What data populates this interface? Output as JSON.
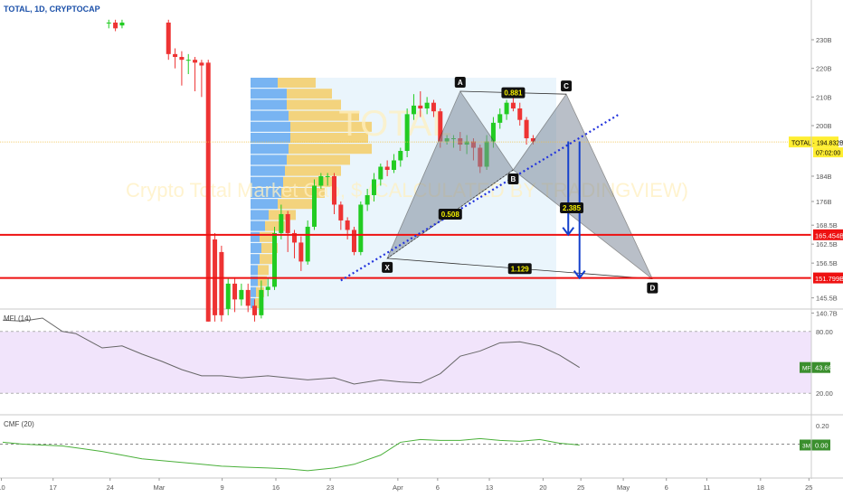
{
  "header": {
    "symbol_line": "TOTAL, 1D, CRYPTOCAP",
    "watermark_symbol": "TOTAL",
    "watermark_desc": "Crypto Total Market Cap, $ (CALCULATED BY TRADINGVIEW)"
  },
  "colors": {
    "up": "#22cc22",
    "down": "#ee3333",
    "vp_up": "#64a8f0",
    "vp_down": "#f5cc66",
    "vp_bg": "#dceefa",
    "pattern_fill": "#808c9c",
    "hline": "#ee1111",
    "trend": "#2233dd",
    "arrow": "#1540cc",
    "mfi_band": "#f1e4fb",
    "mfi_line": "#666666",
    "cmf_line": "#4ab03a",
    "last_price_bg": "#ffee33",
    "indicator_badge": "#3b8f2e"
  },
  "chart_data": [
    {
      "type": "candlestick",
      "title": "TOTAL, 1D, CRYPTOCAP",
      "y_unit": "B",
      "y_range": [
        138,
        236
      ],
      "y_ticks": [
        "230B",
        "220B",
        "210B",
        "200B",
        "184B",
        "176B",
        "168.5B",
        "162.5B",
        "156.5B",
        "145.5B",
        "140.7B"
      ],
      "x_ticks": [
        "10",
        "17",
        "24",
        "Mar",
        "9",
        "16",
        "23",
        "Apr",
        "6",
        "13",
        "20",
        "25",
        "May",
        "6",
        "11",
        "18",
        "25"
      ],
      "last_price": {
        "label": "TOTAL",
        "value": "194.832B",
        "countdown": "07:02:00"
      },
      "candles": [
        {
          "day": 16,
          "o": 236,
          "c": 236,
          "h": 237,
          "l": 234
        },
        {
          "day": 17,
          "o": 236,
          "c": 234,
          "h": 237,
          "l": 233
        },
        {
          "day": 18,
          "o": 235,
          "c": 236,
          "h": 237,
          "l": 234
        },
        {
          "day": 25,
          "o": 236,
          "c": 225,
          "h": 237,
          "l": 223
        },
        {
          "day": 26,
          "o": 225,
          "c": 224,
          "h": 227,
          "l": 220
        },
        {
          "day": 27,
          "o": 224,
          "c": 223,
          "h": 226,
          "l": 214
        },
        {
          "day": 28,
          "o": 223,
          "c": 223,
          "h": 225,
          "l": 218
        },
        {
          "day": 29,
          "o": 223,
          "c": 222,
          "h": 224,
          "l": 212
        },
        {
          "day": 30,
          "o": 222,
          "c": 221,
          "h": 223,
          "l": 210
        },
        {
          "day": 31,
          "o": 222,
          "c": 138,
          "h": 223,
          "l": 138
        },
        {
          "day": 32,
          "o": 164,
          "c": 140,
          "h": 166,
          "l": 138
        },
        {
          "day": 33,
          "o": 160,
          "c": 140,
          "h": 162,
          "l": 138
        },
        {
          "day": 34,
          "o": 142,
          "c": 150,
          "h": 152,
          "l": 140
        },
        {
          "day": 35,
          "o": 150,
          "c": 145,
          "h": 152,
          "l": 141
        },
        {
          "day": 36,
          "o": 145,
          "c": 148,
          "h": 150,
          "l": 143
        },
        {
          "day": 37,
          "o": 148,
          "c": 143,
          "h": 150,
          "l": 141
        },
        {
          "day": 38,
          "o": 143,
          "c": 140,
          "h": 145,
          "l": 138
        },
        {
          "day": 39,
          "o": 140,
          "c": 148,
          "h": 151,
          "l": 139
        },
        {
          "day": 40,
          "o": 148,
          "c": 149,
          "h": 152,
          "l": 146
        },
        {
          "day": 41,
          "o": 149,
          "c": 166,
          "h": 168,
          "l": 148
        },
        {
          "day": 42,
          "o": 166,
          "c": 172,
          "h": 175,
          "l": 164
        },
        {
          "day": 43,
          "o": 172,
          "c": 166,
          "h": 173,
          "l": 160
        },
        {
          "day": 44,
          "o": 166,
          "c": 163,
          "h": 167,
          "l": 158
        },
        {
          "day": 45,
          "o": 163,
          "c": 157,
          "h": 165,
          "l": 154
        },
        {
          "day": 46,
          "o": 157,
          "c": 168,
          "h": 170,
          "l": 156
        },
        {
          "day": 47,
          "o": 168,
          "c": 181,
          "h": 183,
          "l": 167
        },
        {
          "day": 48,
          "o": 181,
          "c": 184,
          "h": 185,
          "l": 180
        },
        {
          "day": 49,
          "o": 184,
          "c": 184,
          "h": 185,
          "l": 181
        },
        {
          "day": 50,
          "o": 184,
          "c": 175,
          "h": 185,
          "l": 172
        },
        {
          "day": 51,
          "o": 175,
          "c": 170,
          "h": 176,
          "l": 167
        },
        {
          "day": 52,
          "o": 170,
          "c": 167,
          "h": 171,
          "l": 164
        },
        {
          "day": 53,
          "o": 167,
          "c": 160,
          "h": 168,
          "l": 159
        },
        {
          "day": 54,
          "o": 160,
          "c": 175,
          "h": 176,
          "l": 159
        },
        {
          "day": 55,
          "o": 175,
          "c": 178,
          "h": 180,
          "l": 173
        },
        {
          "day": 56,
          "o": 178,
          "c": 183,
          "h": 185,
          "l": 176
        },
        {
          "day": 57,
          "o": 183,
          "c": 187,
          "h": 188,
          "l": 181
        },
        {
          "day": 58,
          "o": 187,
          "c": 186,
          "h": 189,
          "l": 184
        },
        {
          "day": 59,
          "o": 186,
          "c": 189,
          "h": 191,
          "l": 185
        },
        {
          "day": 60,
          "o": 189,
          "c": 192,
          "h": 193,
          "l": 187
        },
        {
          "day": 61,
          "o": 192,
          "c": 204,
          "h": 206,
          "l": 190
        },
        {
          "day": 62,
          "o": 204,
          "c": 207,
          "h": 211,
          "l": 202
        },
        {
          "day": 63,
          "o": 207,
          "c": 206,
          "h": 212,
          "l": 203
        },
        {
          "day": 64,
          "o": 206,
          "c": 208,
          "h": 210,
          "l": 204
        },
        {
          "day": 65,
          "o": 208,
          "c": 205,
          "h": 209,
          "l": 203
        },
        {
          "day": 66,
          "o": 205,
          "c": 195,
          "h": 206,
          "l": 193
        },
        {
          "day": 67,
          "o": 195,
          "c": 196,
          "h": 197,
          "l": 194
        },
        {
          "day": 68,
          "o": 196,
          "c": 196,
          "h": 197,
          "l": 193
        },
        {
          "day": 69,
          "o": 196,
          "c": 194,
          "h": 198,
          "l": 192
        },
        {
          "day": 70,
          "o": 194,
          "c": 195,
          "h": 197,
          "l": 191
        },
        {
          "day": 71,
          "o": 195,
          "c": 193,
          "h": 196,
          "l": 189
        },
        {
          "day": 72,
          "o": 193,
          "c": 187,
          "h": 194,
          "l": 185
        },
        {
          "day": 73,
          "o": 187,
          "c": 195,
          "h": 197,
          "l": 186
        },
        {
          "day": 74,
          "o": 195,
          "c": 201,
          "h": 203,
          "l": 193
        },
        {
          "day": 75,
          "o": 201,
          "c": 204,
          "h": 206,
          "l": 199
        },
        {
          "day": 76,
          "o": 204,
          "c": 208,
          "h": 209,
          "l": 202
        },
        {
          "day": 77,
          "o": 208,
          "c": 206,
          "h": 210,
          "l": 205
        },
        {
          "day": 78,
          "o": 206,
          "c": 202,
          "h": 208,
          "l": 200
        },
        {
          "day": 79,
          "o": 202,
          "c": 196,
          "h": 203,
          "l": 194
        },
        {
          "day": 80,
          "o": 196,
          "c": 195,
          "h": 197,
          "l": 194
        }
      ],
      "harmonic_pattern": {
        "points": [
          {
            "label": "X",
            "day": 58,
            "value": 158
          },
          {
            "label": "A",
            "day": 69,
            "value": 212
          },
          {
            "label": "B",
            "day": 77,
            "value": 186
          },
          {
            "label": "C",
            "day": 85,
            "value": 211
          },
          {
            "label": "D",
            "day": 98,
            "value": 151.5
          }
        ],
        "ratios": [
          "0.881",
          "0.508",
          "2.385",
          "1.129"
        ]
      },
      "horizontal_levels": [
        "165.454B",
        "151.799B"
      ],
      "levels_value": [
        165.454,
        151.799
      ],
      "trendline": {
        "from": {
          "day": 51,
          "value": 151
        },
        "to": {
          "day": 93,
          "value": 204
        }
      },
      "arrows": [
        {
          "day": 85.3,
          "from": 195,
          "to": 165.5
        },
        {
          "day": 87,
          "from": 195,
          "to": 151.8
        }
      ]
    },
    {
      "type": "line",
      "title": "MFI (14)",
      "y_range": [
        0,
        100
      ],
      "y_ticks": [
        "80.00",
        "20.00"
      ],
      "band": [
        20,
        80
      ],
      "last_value": "43.66",
      "badge_label": "MF",
      "x": [
        0,
        3,
        6,
        9,
        11,
        15,
        18,
        21,
        24,
        27,
        30,
        33,
        36,
        40,
        43,
        46,
        50,
        53,
        57,
        60,
        63,
        66,
        69,
        72,
        75,
        78,
        81,
        84,
        87
      ],
      "values": [
        91,
        90,
        93,
        80,
        78,
        64,
        66,
        58,
        51,
        43,
        37,
        37,
        35,
        37,
        35,
        33,
        35,
        29,
        33,
        31,
        30,
        39,
        56,
        61,
        69,
        70,
        66,
        57,
        45
      ]
    },
    {
      "type": "line",
      "title": "CMF (20)",
      "y_range": [
        -0.35,
        0.3
      ],
      "y_ticks": [
        "0.20",
        "0.00"
      ],
      "zero_line": 0,
      "last_value": "0.00",
      "badge_label": "3M",
      "x": [
        0,
        3,
        6,
        9,
        12,
        15,
        18,
        21,
        24,
        27,
        30,
        33,
        36,
        40,
        43,
        46,
        50,
        53,
        57,
        60,
        63,
        66,
        69,
        72,
        75,
        78,
        81,
        84,
        87
      ],
      "values": [
        0.02,
        0.0,
        -0.01,
        -0.02,
        -0.05,
        -0.08,
        -0.12,
        -0.16,
        -0.18,
        -0.2,
        -0.22,
        -0.24,
        -0.25,
        -0.26,
        -0.27,
        -0.29,
        -0.26,
        -0.22,
        -0.12,
        0.02,
        0.05,
        0.04,
        0.04,
        0.06,
        0.04,
        0.03,
        0.05,
        0.01,
        -0.01
      ]
    }
  ]
}
